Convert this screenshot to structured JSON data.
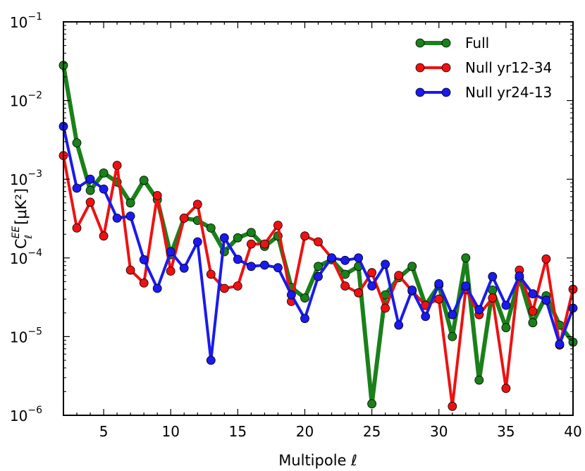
{
  "chart_data": {
    "type": "line",
    "xlabel": "Multipole ℓ",
    "ylabel": "C",
    "ylabel_sup": "EE",
    "ylabel_sub": "ℓ",
    "ylabel_unit": "[μK²]",
    "xlim": [
      2,
      40
    ],
    "ylim": [
      1e-06,
      0.1
    ],
    "yscale": "log",
    "x_ticks": [
      5,
      10,
      15,
      20,
      25,
      30,
      35,
      40
    ],
    "y_ticks": [
      {
        "value": 1e-06,
        "base": "10",
        "exp": "−6"
      },
      {
        "value": 1e-05,
        "base": "10",
        "exp": "−5"
      },
      {
        "value": 0.0001,
        "base": "10",
        "exp": "−4"
      },
      {
        "value": 0.001,
        "base": "10",
        "exp": "−3"
      },
      {
        "value": 0.01,
        "base": "10",
        "exp": "−2"
      },
      {
        "value": 0.1,
        "base": "10",
        "exp": "−1"
      }
    ],
    "grid": false,
    "legend_position": "top-right",
    "x": [
      2,
      3,
      4,
      5,
      6,
      7,
      8,
      9,
      10,
      11,
      12,
      13,
      14,
      15,
      16,
      17,
      18,
      19,
      20,
      21,
      22,
      23,
      24,
      25,
      26,
      27,
      28,
      29,
      30,
      31,
      32,
      33,
      34,
      35,
      36,
      37,
      38,
      39,
      40
    ],
    "series": [
      {
        "name": "Full",
        "color": "#1a801a",
        "values": [
          0.028,
          0.0029,
          0.00072,
          0.0012,
          0.00092,
          0.0005,
          0.00097,
          0.00055,
          0.00011,
          0.00032,
          0.0003,
          0.00024,
          0.00012,
          0.00018,
          0.00021,
          0.00014,
          0.00019,
          4.2e-05,
          3.1e-05,
          7.8e-05,
          9.5e-05,
          6.2e-05,
          7.8e-05,
          1.4e-06,
          3.4e-05,
          5.6e-05,
          7.8e-05,
          2.5e-05,
          4.5e-05,
          1e-05,
          0.0001,
          2.8e-06,
          3.9e-05,
          1.3e-05,
          5.6e-05,
          1.5e-05,
          3.3e-05,
          1.4e-05,
          8.5e-06
        ]
      },
      {
        "name": "Null yr12-34",
        "color": "#ee1111",
        "values": [
          0.002,
          0.00024,
          0.00051,
          0.00019,
          0.0015,
          7e-05,
          4.8e-05,
          0.00062,
          6.8e-05,
          0.00032,
          0.00048,
          6.2e-05,
          4.1e-05,
          4.4e-05,
          0.00015,
          0.00015,
          0.00026,
          2.8e-05,
          0.00019,
          0.00016,
          0.0001,
          4.4e-05,
          3.6e-05,
          6.5e-05,
          2.3e-05,
          6e-05,
          3.8e-05,
          2.5e-05,
          3e-05,
          1.3e-06,
          4e-05,
          1.9e-05,
          3.1e-05,
          2.2e-06,
          7e-05,
          2.1e-05,
          9.7e-05,
          7.8e-06,
          4e-05
        ]
      },
      {
        "name": "Null yr24-13",
        "color": "#1a1aee",
        "values": [
          0.0047,
          0.00077,
          0.001,
          0.00075,
          0.00032,
          0.00034,
          9.5e-05,
          4.1e-05,
          0.00012,
          7.4e-05,
          0.00016,
          5e-06,
          0.00018,
          9.6e-05,
          7.8e-05,
          8.1e-05,
          7.5e-05,
          3.4e-05,
          1.7e-05,
          5.8e-05,
          0.0001,
          9.3e-05,
          0.0001,
          4.4e-05,
          8.3e-05,
          1.4e-05,
          3.9e-05,
          1.8e-05,
          4.7e-05,
          1.9e-05,
          4.4e-05,
          2.2e-05,
          5.8e-05,
          2.5e-05,
          5.9e-05,
          3.5e-05,
          2.9e-05,
          8e-06,
          2.3e-05
        ]
      }
    ]
  }
}
